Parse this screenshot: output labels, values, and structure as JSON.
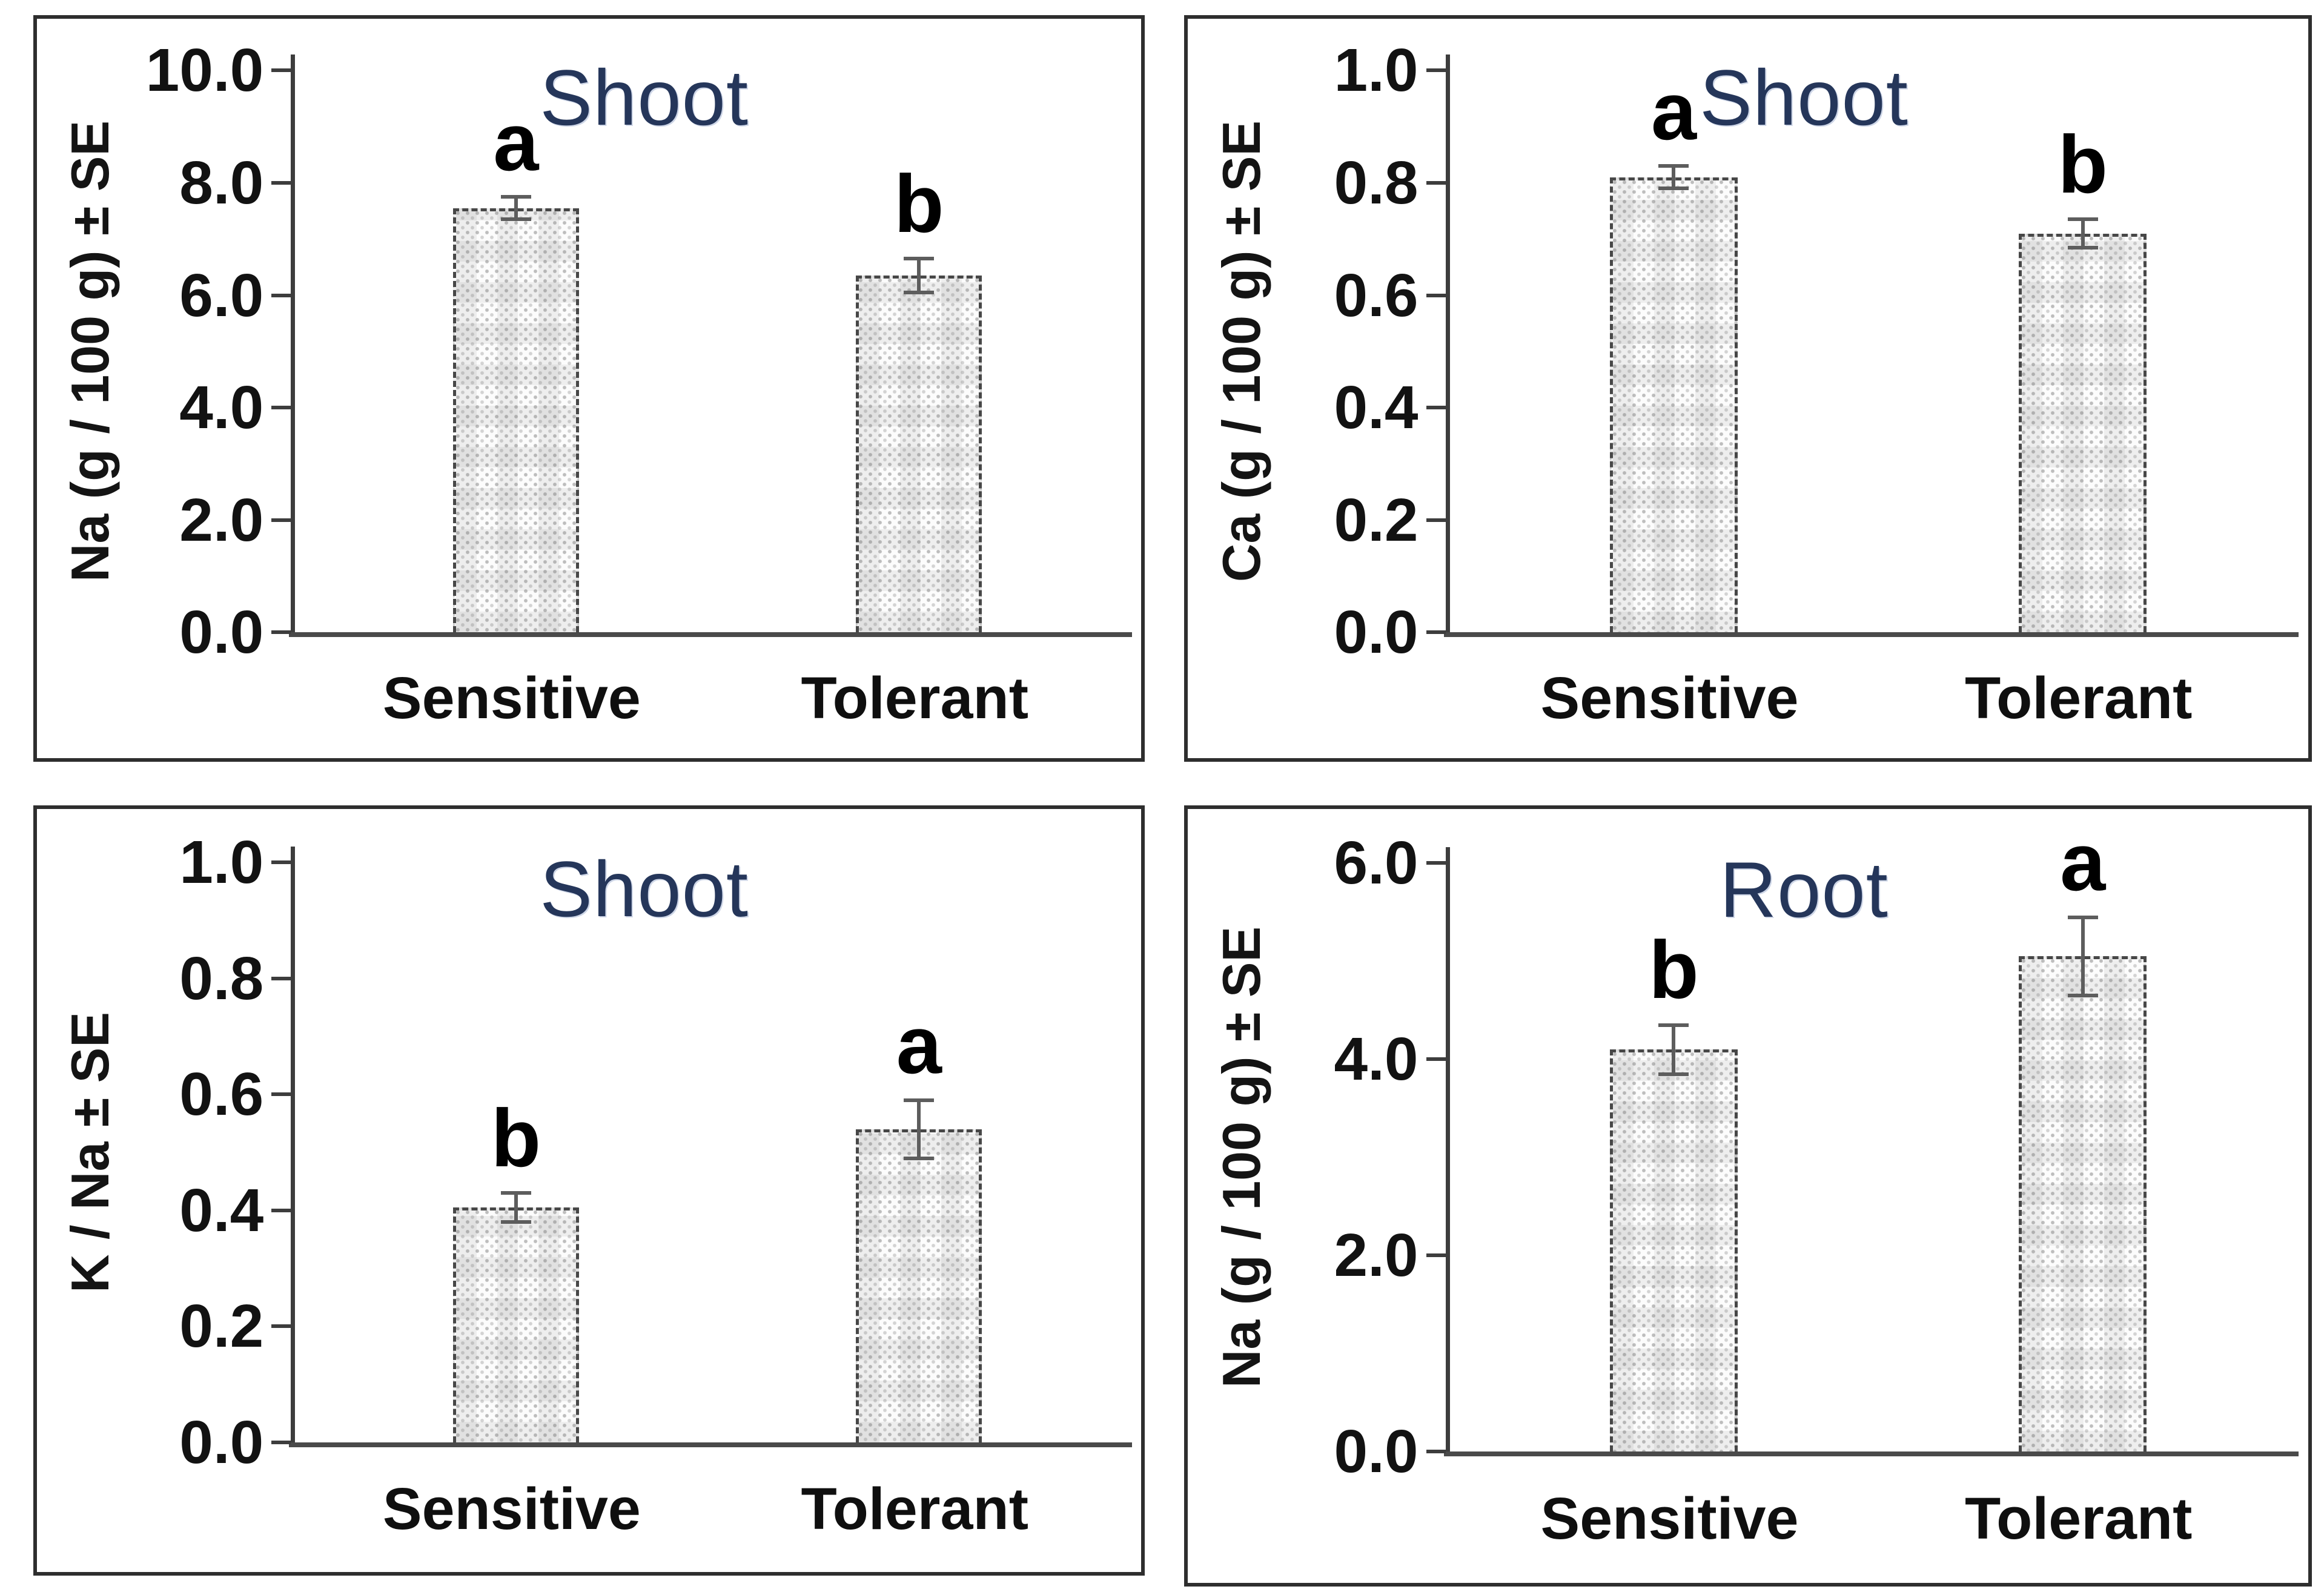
{
  "figure": {
    "background": "#ffffff",
    "panel_border_color": "#2e2e2e",
    "title_color": "#25365a",
    "text_color": "#121212",
    "axis_color": "#3d3d3d",
    "error_bar_color": "#5d5d5d",
    "bar_border_color": "#474747",
    "bar_fill_base": "#fcfcfc"
  },
  "chart_data": [
    {
      "type": "bar",
      "panel": "top-left",
      "title": "Shoot",
      "ylabel": "Na (g / 100 g) ± SE",
      "xlabel": "",
      "categories": [
        "Sensitive",
        "Tolerant"
      ],
      "values": [
        7.55,
        6.35
      ],
      "errors": [
        0.2,
        0.3
      ],
      "letters": [
        "a",
        "b"
      ],
      "ylim": [
        0,
        10
      ],
      "yticks": [
        0,
        2,
        4,
        6,
        8,
        10
      ],
      "ytick_labels": [
        "0.0",
        "2.0",
        "4.0",
        "6.0",
        "8.0",
        "10.0"
      ],
      "grid": "off",
      "legend": "none"
    },
    {
      "type": "bar",
      "panel": "top-right",
      "title": "Shoot",
      "ylabel": "Ca (g / 100 g) ± SE",
      "xlabel": "",
      "categories": [
        "Sensitive",
        "Tolerant"
      ],
      "values": [
        0.81,
        0.71
      ],
      "errors": [
        0.02,
        0.025
      ],
      "letters": [
        "a",
        "b"
      ],
      "ylim": [
        0,
        1.0
      ],
      "yticks": [
        0,
        0.2,
        0.4,
        0.6,
        0.8,
        1.0
      ],
      "ytick_labels": [
        "0.0",
        "0.2",
        "0.4",
        "0.6",
        "0.8",
        "1.0"
      ],
      "grid": "off",
      "legend": "none"
    },
    {
      "type": "bar",
      "panel": "bottom-left",
      "title": "Shoot",
      "ylabel": "K / Na ± SE",
      "xlabel": "",
      "categories": [
        "Sensitive",
        "Tolerant"
      ],
      "values": [
        0.405,
        0.54
      ],
      "errors": [
        0.025,
        0.05
      ],
      "letters": [
        "b",
        "a"
      ],
      "ylim": [
        0,
        1.0
      ],
      "yticks": [
        0,
        0.2,
        0.4,
        0.6,
        0.8,
        1.0
      ],
      "ytick_labels": [
        "0.0",
        "0.2",
        "0.4",
        "0.6",
        "0.8",
        "1.0"
      ],
      "grid": "off",
      "legend": "none"
    },
    {
      "type": "bar",
      "panel": "bottom-right",
      "title": "Root",
      "ylabel": "Na (g / 100 g) ± SE",
      "xlabel": "",
      "categories": [
        "Sensitive",
        "Tolerant"
      ],
      "values": [
        4.1,
        5.05
      ],
      "errors": [
        0.25,
        0.4
      ],
      "letters": [
        "b",
        "a"
      ],
      "ylim": [
        0,
        6.0
      ],
      "yticks": [
        0,
        2,
        4,
        6
      ],
      "ytick_labels": [
        "0.0",
        "2.0",
        "4.0",
        "6.0"
      ],
      "grid": "off",
      "legend": "none"
    }
  ]
}
